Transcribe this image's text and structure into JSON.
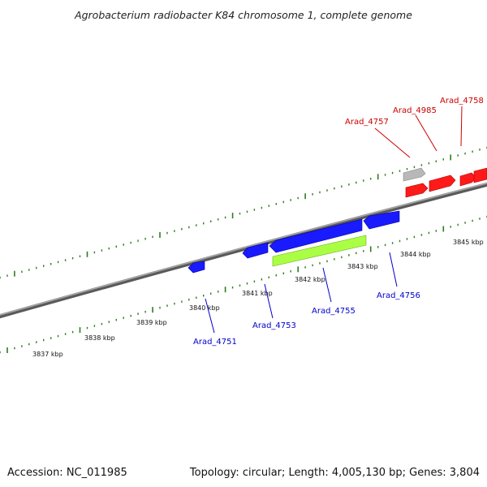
{
  "title": "Agrobacterium radiobacter K84 chromosome 1, complete genome",
  "footer": {
    "accession": "Accession: NC_011985",
    "summary": "Topology: circular; Length: 4,005,130 bp; Genes: 3,804"
  },
  "colors": {
    "backbone": "#808080",
    "tick": "#2e7d1e",
    "forward_gene": "#ff0000",
    "reverse_gene": "#0000ff",
    "other_gene": "#aaff44",
    "pseudo_gene": "#b0b0b0",
    "forward_label": "#cc0000",
    "reverse_label": "#0000cc"
  },
  "ticks": {
    "upper": [],
    "lower_labels": [
      {
        "text": "3837 kbp"
      },
      {
        "text": "3838 kbp"
      },
      {
        "text": "3839 kbp"
      },
      {
        "text": "3840 kbp"
      },
      {
        "text": "3841 kbp"
      },
      {
        "text": "3842 kbp"
      },
      {
        "text": "3843 kbp"
      },
      {
        "text": "3844 kbp"
      },
      {
        "text": "3845 kbp"
      }
    ]
  },
  "genes": {
    "forward_labels": [
      {
        "name": "Arad_4757"
      },
      {
        "name": "Arad_4985"
      },
      {
        "name": "Arad_4758"
      }
    ],
    "reverse_labels": [
      {
        "name": "Arad_4751"
      },
      {
        "name": "Arad_4753"
      },
      {
        "name": "Arad_4755"
      },
      {
        "name": "Arad_4756"
      }
    ]
  }
}
